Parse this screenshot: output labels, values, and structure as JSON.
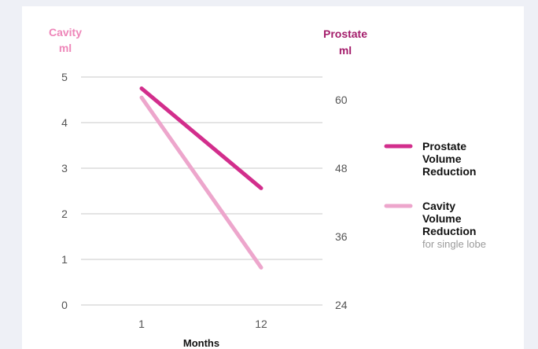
{
  "chart_data": {
    "type": "line",
    "x_categories": [
      "1",
      "12"
    ],
    "xlabel": "Months",
    "left_axis": {
      "label_lines": [
        "Cavity",
        "ml"
      ],
      "ylim": [
        0,
        5
      ],
      "ticks": [
        0,
        1,
        2,
        3,
        4,
        5
      ]
    },
    "right_axis": {
      "label_lines": [
        "Prostate",
        "ml"
      ],
      "ylim": [
        24,
        64
      ],
      "ticks": [
        24,
        36,
        48,
        60
      ]
    },
    "series": [
      {
        "name_lines": [
          "Prostate",
          "Volume",
          "Reduction"
        ],
        "note": "",
        "axis": "right",
        "color": "#d22e8c",
        "values": [
          62,
          44.5
        ]
      },
      {
        "name_lines": [
          "Cavity",
          "Volume",
          "Reduction"
        ],
        "note": "for single lobe",
        "axis": "left",
        "color": "#eda6cc",
        "values": [
          4.55,
          0.82
        ]
      }
    ],
    "grid": true,
    "legend_position": "right",
    "colors": {
      "left_axis_label": "#ee86b9",
      "right_axis_label": "#a41d6b",
      "tick_text": "#555555",
      "grid": "#c9c9c9",
      "legend_text": "#111111",
      "note_text": "#9a9a9a"
    }
  }
}
